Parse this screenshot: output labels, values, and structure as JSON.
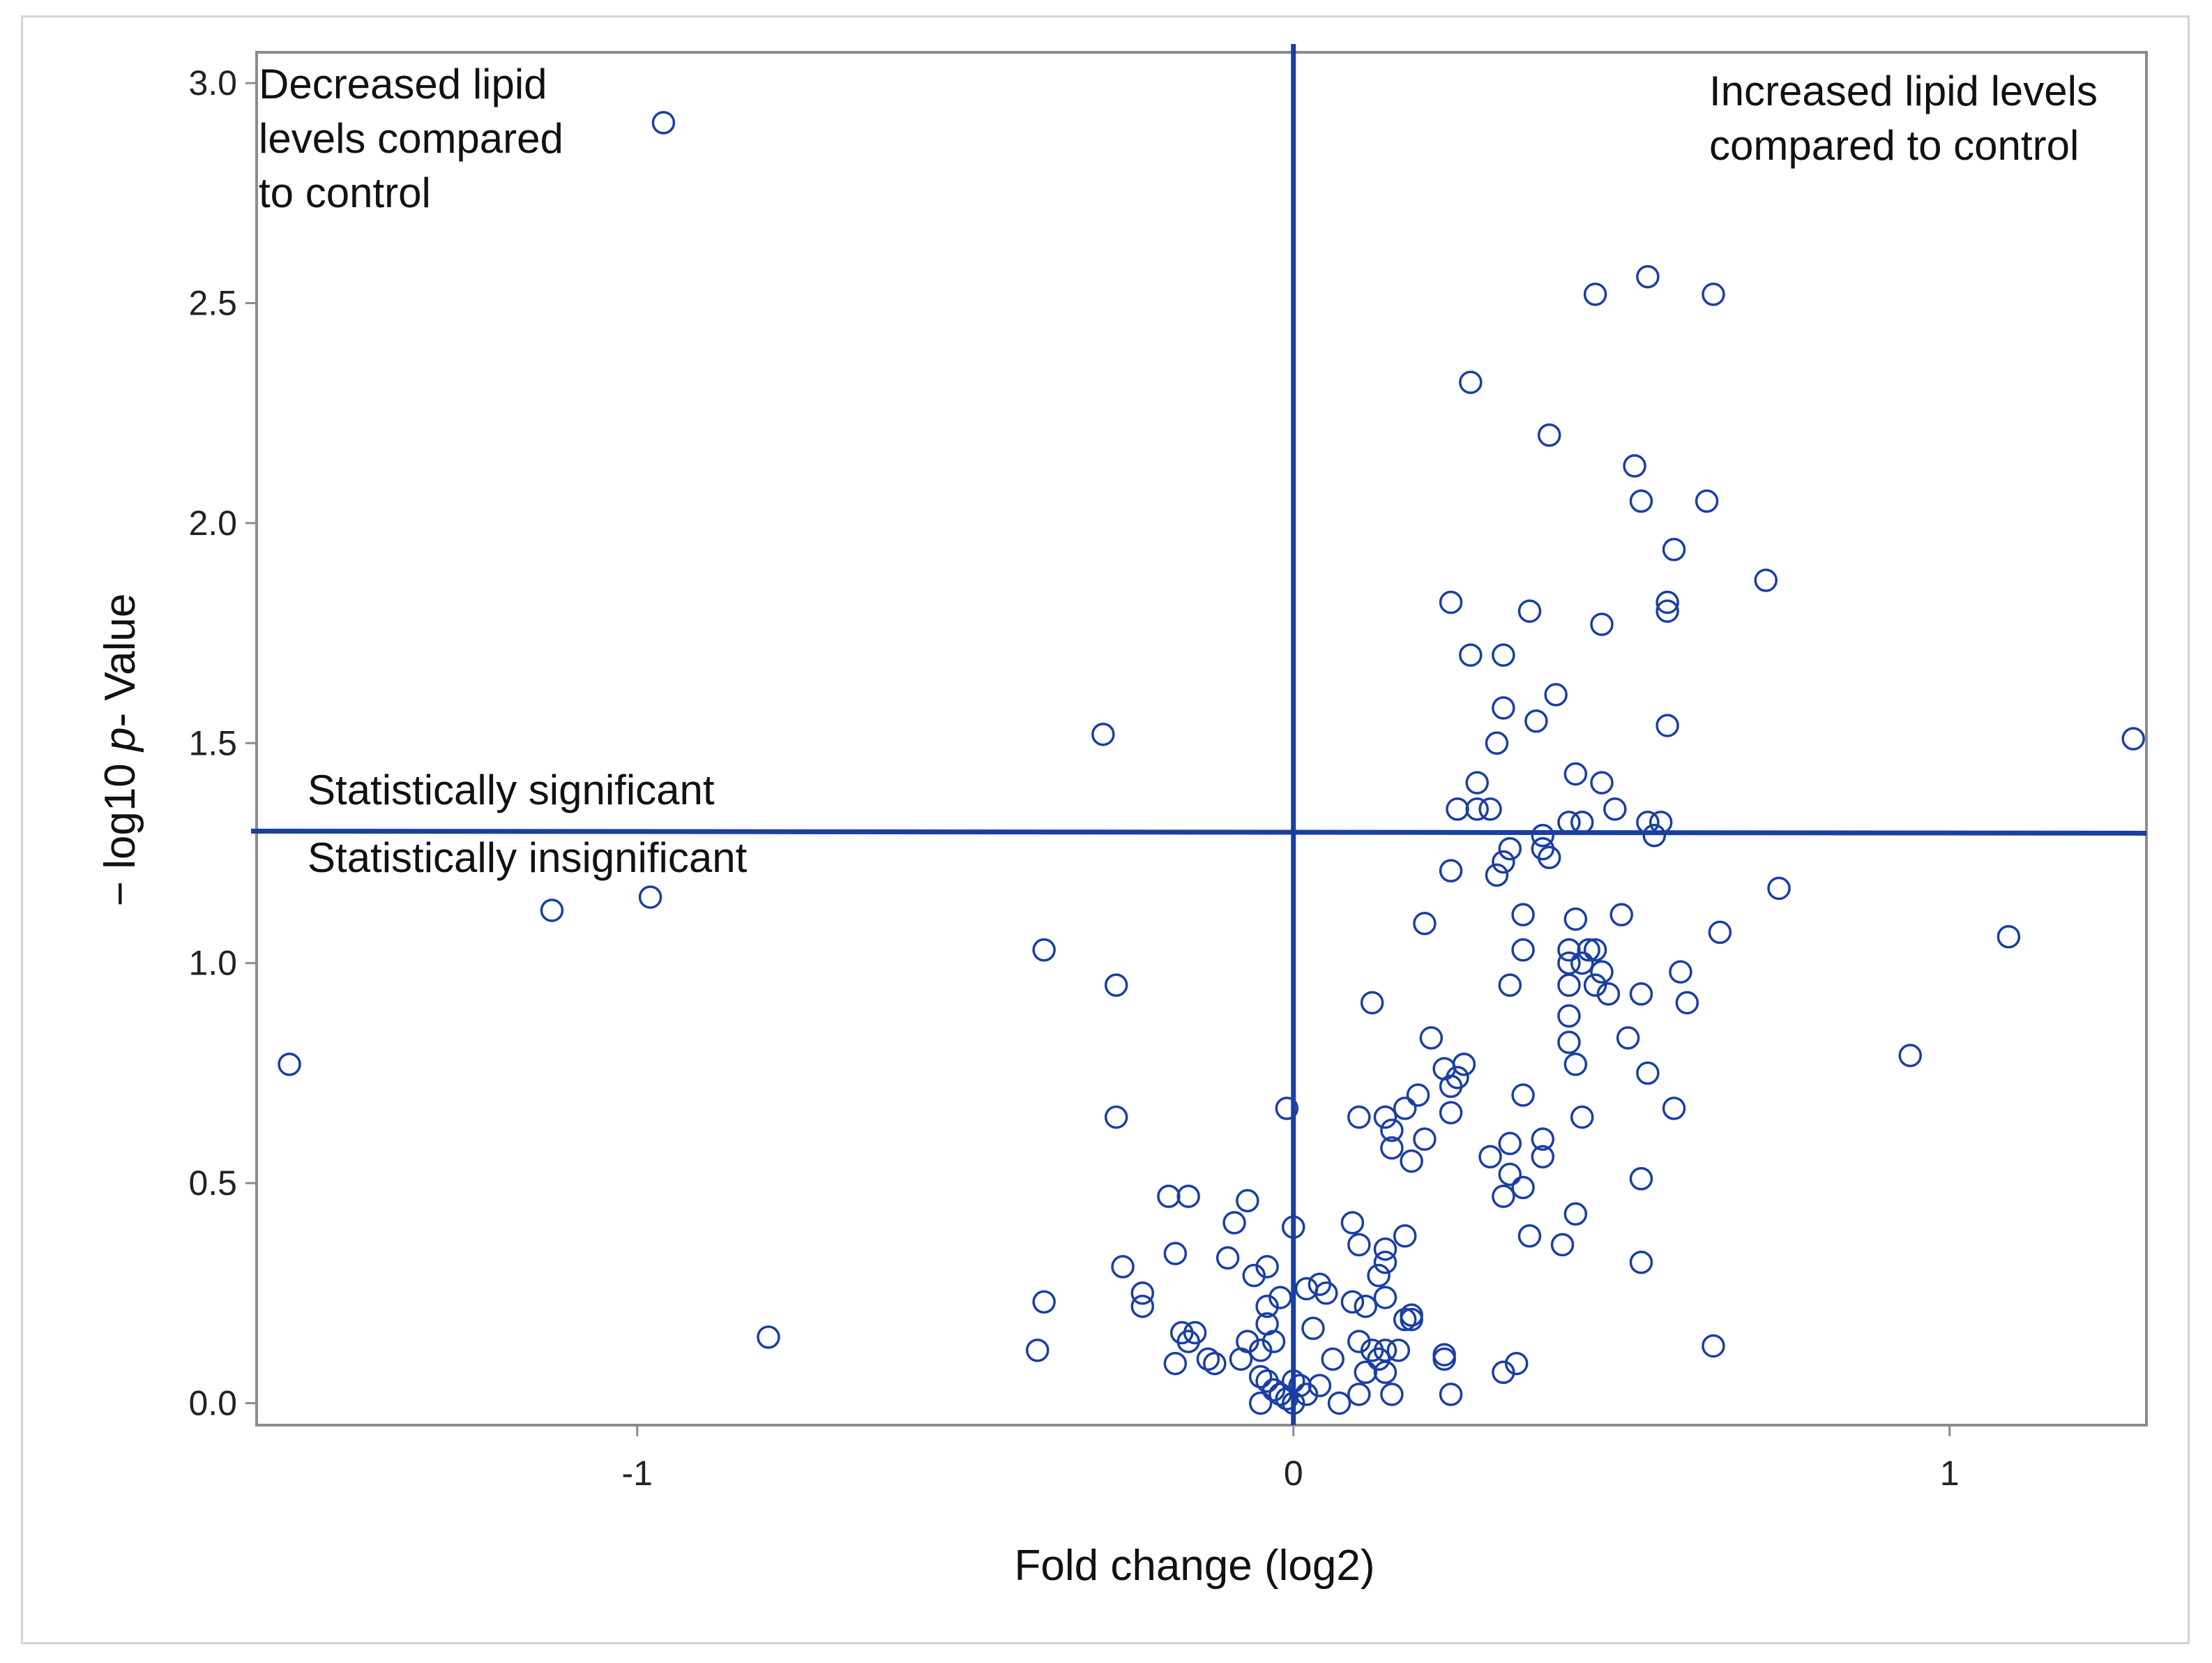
{
  "chart_data": {
    "type": "scatter",
    "xlabel": "Fold change (log2)",
    "ylabel_parts": [
      "− log10 ",
      "p",
      "- Value"
    ],
    "xlim": [
      -1.58,
      1.3
    ],
    "ylim": [
      -0.05,
      3.07
    ],
    "x_ticks": [
      -1,
      0,
      1
    ],
    "x_tick_labels": [
      "-1",
      "0",
      "1"
    ],
    "y_ticks": [
      0.0,
      0.5,
      1.0,
      1.5,
      2.0,
      2.5,
      3.0
    ],
    "y_tick_labels": [
      "0.0",
      "0.5",
      "1.0",
      "1.5",
      "2.0",
      "2.5",
      "3.0"
    ],
    "reference_lines": {
      "vertical_x": 0,
      "horizontal_y": 1.3
    },
    "annotations": {
      "top_left": [
        "Decreased lipid",
        "levels compared",
        "to control"
      ],
      "top_right": [
        "Increased lipid levels",
        "compared to control"
      ],
      "significant": "Statistically significant",
      "insignificant": "Statistically insignificant"
    },
    "colors": {
      "marker": "#1a3fa3",
      "line": "#1a3fa3",
      "frame": "#8c8c8c"
    },
    "grid": false,
    "points": [
      [
        -0.96,
        2.91
      ],
      [
        -1.53,
        0.77
      ],
      [
        -1.13,
        1.12
      ],
      [
        -0.98,
        1.15
      ],
      [
        -0.8,
        0.15
      ],
      [
        -0.29,
        1.52
      ],
      [
        -0.38,
        1.03
      ],
      [
        -0.27,
        0.95
      ],
      [
        -0.27,
        0.65
      ],
      [
        -0.38,
        0.23
      ],
      [
        -0.39,
        0.12
      ],
      [
        -0.26,
        0.31
      ],
      [
        -0.23,
        0.25
      ],
      [
        -0.23,
        0.22
      ],
      [
        -0.19,
        0.47
      ],
      [
        -0.16,
        0.47
      ],
      [
        -0.18,
        0.34
      ],
      [
        -0.17,
        0.16
      ],
      [
        -0.15,
        0.16
      ],
      [
        -0.16,
        0.14
      ],
      [
        -0.18,
        0.09
      ],
      [
        -0.13,
        0.1
      ],
      [
        -0.12,
        0.09
      ],
      [
        -0.1,
        0.33
      ],
      [
        -0.07,
        0.46
      ],
      [
        -0.09,
        0.41
      ],
      [
        -0.06,
        0.29
      ],
      [
        -0.04,
        0.31
      ],
      [
        -0.07,
        0.14
      ],
      [
        -0.08,
        0.1
      ],
      [
        -0.05,
        0.12
      ],
      [
        -0.04,
        0.18
      ],
      [
        -0.04,
        0.22
      ],
      [
        -0.02,
        0.24
      ],
      [
        -0.03,
        0.14
      ],
      [
        -0.05,
        0.06
      ],
      [
        -0.04,
        0.05
      ],
      [
        -0.03,
        0.03
      ],
      [
        -0.05,
        0.0
      ],
      [
        -0.02,
        0.02
      ],
      [
        -0.01,
        0.01
      ],
      [
        0.0,
        0.0
      ],
      [
        0.0,
        0.05
      ],
      [
        0.01,
        0.04
      ],
      [
        0.02,
        0.02
      ],
      [
        -0.01,
        0.67
      ],
      [
        0.0,
        0.4
      ],
      [
        0.02,
        0.26
      ],
      [
        0.04,
        0.27
      ],
      [
        0.05,
        0.25
      ],
      [
        0.03,
        0.17
      ],
      [
        0.06,
        0.1
      ],
      [
        0.04,
        0.04
      ],
      [
        0.07,
        0.0
      ],
      [
        0.09,
        0.41
      ],
      [
        0.1,
        0.36
      ],
      [
        0.09,
        0.23
      ],
      [
        0.11,
        0.22
      ],
      [
        0.1,
        0.14
      ],
      [
        0.11,
        0.07
      ],
      [
        0.1,
        0.02
      ],
      [
        0.12,
        0.12
      ],
      [
        0.13,
        0.1
      ],
      [
        0.13,
        0.29
      ],
      [
        0.14,
        0.32
      ],
      [
        0.14,
        0.35
      ],
      [
        0.14,
        0.24
      ],
      [
        0.14,
        0.12
      ],
      [
        0.14,
        0.07
      ],
      [
        0.15,
        0.02
      ],
      [
        0.16,
        0.12
      ],
      [
        0.17,
        0.19
      ],
      [
        0.17,
        0.38
      ],
      [
        0.18,
        0.2
      ],
      [
        0.18,
        0.19
      ],
      [
        0.12,
        0.91
      ],
      [
        0.1,
        0.65
      ],
      [
        0.14,
        0.65
      ],
      [
        0.15,
        0.62
      ],
      [
        0.15,
        0.58
      ],
      [
        0.17,
        0.67
      ],
      [
        0.19,
        0.7
      ],
      [
        0.18,
        0.55
      ],
      [
        0.2,
        0.6
      ],
      [
        0.21,
        0.83
      ],
      [
        0.23,
        0.76
      ],
      [
        0.24,
        0.72
      ],
      [
        0.25,
        0.74
      ],
      [
        0.26,
        0.77
      ],
      [
        0.24,
        0.66
      ],
      [
        0.2,
        1.09
      ],
      [
        0.24,
        1.21
      ],
      [
        0.24,
        1.82
      ],
      [
        0.27,
        1.7
      ],
      [
        0.27,
        2.32
      ],
      [
        0.25,
        1.35
      ],
      [
        0.28,
        1.35
      ],
      [
        0.28,
        1.41
      ],
      [
        0.3,
        1.35
      ],
      [
        0.31,
        1.5
      ],
      [
        0.31,
        1.2
      ],
      [
        0.32,
        1.23
      ],
      [
        0.33,
        1.26
      ],
      [
        0.33,
        0.95
      ],
      [
        0.32,
        1.58
      ],
      [
        0.32,
        1.7
      ],
      [
        0.36,
        1.8
      ],
      [
        0.37,
        1.55
      ],
      [
        0.39,
        2.2
      ],
      [
        0.4,
        1.61
      ],
      [
        0.38,
        1.29
      ],
      [
        0.39,
        1.24
      ],
      [
        0.38,
        1.26
      ],
      [
        0.42,
        1.32
      ],
      [
        0.35,
        1.11
      ],
      [
        0.35,
        1.03
      ],
      [
        0.43,
        1.43
      ],
      [
        0.44,
        1.32
      ],
      [
        0.47,
        1.41
      ],
      [
        0.46,
        2.52
      ],
      [
        0.47,
        1.77
      ],
      [
        0.49,
        1.35
      ],
      [
        0.52,
        2.13
      ],
      [
        0.53,
        2.05
      ],
      [
        0.54,
        2.56
      ],
      [
        0.54,
        1.32
      ],
      [
        0.55,
        1.29
      ],
      [
        0.56,
        1.32
      ],
      [
        0.57,
        1.82
      ],
      [
        0.57,
        1.8
      ],
      [
        0.57,
        1.54
      ],
      [
        0.58,
        1.94
      ],
      [
        0.63,
        2.05
      ],
      [
        0.64,
        2.52
      ],
      [
        0.72,
        1.87
      ],
      [
        0.43,
        1.1
      ],
      [
        0.42,
        1.03
      ],
      [
        0.42,
        1.0
      ],
      [
        0.45,
        1.03
      ],
      [
        0.46,
        1.03
      ],
      [
        0.44,
        1.0
      ],
      [
        0.47,
        0.98
      ],
      [
        0.46,
        0.95
      ],
      [
        0.48,
        0.93
      ],
      [
        0.42,
        0.95
      ],
      [
        0.42,
        0.88
      ],
      [
        0.42,
        0.82
      ],
      [
        0.5,
        1.11
      ],
      [
        0.51,
        0.83
      ],
      [
        0.53,
        0.93
      ],
      [
        0.54,
        0.75
      ],
      [
        0.58,
        0.67
      ],
      [
        0.59,
        0.98
      ],
      [
        0.6,
        0.91
      ],
      [
        0.65,
        1.07
      ],
      [
        0.74,
        1.17
      ],
      [
        0.43,
        0.77
      ],
      [
        0.38,
        0.6
      ],
      [
        0.38,
        0.56
      ],
      [
        0.33,
        0.59
      ],
      [
        0.35,
        0.7
      ],
      [
        0.33,
        0.52
      ],
      [
        0.3,
        0.56
      ],
      [
        0.35,
        0.49
      ],
      [
        0.32,
        0.47
      ],
      [
        0.43,
        0.43
      ],
      [
        0.44,
        0.65
      ],
      [
        0.36,
        0.38
      ],
      [
        0.41,
        0.36
      ],
      [
        0.53,
        0.32
      ],
      [
        0.53,
        0.51
      ],
      [
        0.64,
        0.13
      ],
      [
        0.34,
        0.09
      ],
      [
        0.32,
        0.07
      ],
      [
        0.24,
        0.02
      ],
      [
        0.23,
        0.1
      ],
      [
        0.23,
        0.11
      ],
      [
        0.94,
        0.79
      ],
      [
        1.09,
        1.06
      ],
      [
        1.28,
        1.51
      ]
    ]
  }
}
